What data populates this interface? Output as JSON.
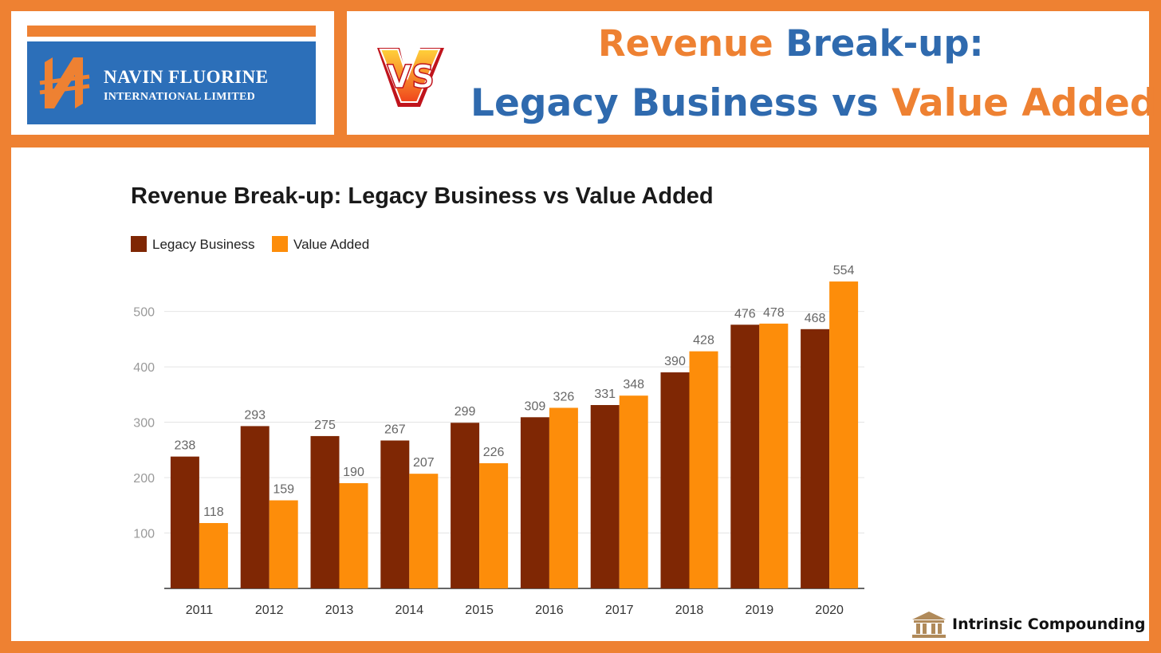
{
  "logo": {
    "name": "NAVIN FLUORINE",
    "sub": "INTERNATIONAL LIMITED",
    "mark_glyph": "N",
    "badge_text": "VS"
  },
  "header": {
    "line1_part1": "Revenue ",
    "line1_part2": "Break-up:",
    "line2_part1": "Legacy Business ",
    "line2_part2": "vs ",
    "line2_part3": "Value Added"
  },
  "colors": {
    "frame": "#ee8132",
    "legacy": "#7f2704",
    "value_added": "#fd8d0a",
    "title_blue": "#2f6aae",
    "title_orange": "#ee8132"
  },
  "chart_data": {
    "type": "bar",
    "title": "Revenue Break-up: Legacy Business vs Value Added",
    "categories": [
      "2011",
      "2012",
      "2013",
      "2014",
      "2015",
      "2016",
      "2017",
      "2018",
      "2019",
      "2020"
    ],
    "series": [
      {
        "name": "Legacy Business",
        "color": "#7f2704",
        "values": [
          238,
          293,
          275,
          267,
          299,
          309,
          331,
          390,
          476,
          468
        ]
      },
      {
        "name": "Value Added",
        "color": "#fd8d0a",
        "values": [
          118,
          159,
          190,
          207,
          226,
          326,
          348,
          428,
          478,
          554
        ]
      }
    ],
    "yticks": [
      100,
      200,
      300,
      400,
      500
    ],
    "ylim": [
      0,
      580
    ],
    "grid": true,
    "legend": "top-left",
    "xlabel": "",
    "ylabel": ""
  },
  "footer": {
    "brand": "Intrinsic Compounding",
    "brand_icon": "bank-building-icon"
  }
}
